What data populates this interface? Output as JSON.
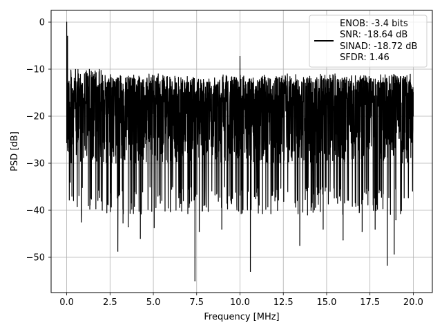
{
  "chart_data": {
    "type": "line",
    "title": "",
    "xlabel": "Frequency [MHz]",
    "ylabel": "PSD [dB]",
    "xlim": [
      -0.9,
      21.1
    ],
    "ylim": [
      -57.5,
      2.5
    ],
    "x_ticks": [
      0.0,
      2.5,
      5.0,
      7.5,
      10.0,
      12.5,
      15.0,
      17.5,
      20.0
    ],
    "x_tick_labels": [
      "0.0",
      "2.5",
      "5.0",
      "7.5",
      "10.0",
      "12.5",
      "15.0",
      "17.5",
      "20.0"
    ],
    "y_ticks": [
      0,
      -10,
      -20,
      -30,
      -40,
      -50
    ],
    "y_tick_labels": [
      "0",
      "−10",
      "−20",
      "−30",
      "−40",
      "−50"
    ],
    "grid": true,
    "legend_position": "top-right",
    "legend_lines": [
      "ENOB: -3.4 bits",
      "SNR: -18.64 dB",
      "SINAD: -18.72 dB",
      "SFDR: 1.46"
    ],
    "series": [
      {
        "color": "#000000",
        "noise_floor_db": [
          -35,
          -10
        ],
        "x_range": [
          0.0,
          20.0
        ],
        "notable_points": [
          {
            "x": 0.0,
            "y": 0.0
          },
          {
            "x": 0.05,
            "y": -3
          },
          {
            "x": 0.1,
            "y": -17
          },
          {
            "x": 0.2,
            "y": -34
          },
          {
            "x": 0.3,
            "y": -37
          },
          {
            "x": 0.85,
            "y": -42.5
          },
          {
            "x": 2.05,
            "y": -40
          },
          {
            "x": 2.95,
            "y": -48.7
          },
          {
            "x": 3.25,
            "y": -42.7
          },
          {
            "x": 3.55,
            "y": -43.5
          },
          {
            "x": 4.25,
            "y": -46
          },
          {
            "x": 5.05,
            "y": -43.7
          },
          {
            "x": 5.4,
            "y": -38.5
          },
          {
            "x": 7.4,
            "y": -55
          },
          {
            "x": 7.65,
            "y": -44.5
          },
          {
            "x": 8.95,
            "y": -44
          },
          {
            "x": 10.0,
            "y": -7.3
          },
          {
            "x": 10.6,
            "y": -53
          },
          {
            "x": 11.3,
            "y": -40.7
          },
          {
            "x": 13.45,
            "y": -47.5
          },
          {
            "x": 13.9,
            "y": -41
          },
          {
            "x": 14.8,
            "y": -44
          },
          {
            "x": 15.95,
            "y": -46.3
          },
          {
            "x": 17.05,
            "y": -44.5
          },
          {
            "x": 17.8,
            "y": -44
          },
          {
            "x": 18.5,
            "y": -51.7
          },
          {
            "x": 18.9,
            "y": -49.3
          },
          {
            "x": 19.0,
            "y": -42
          },
          {
            "x": 20.0,
            "y": -20
          }
        ]
      }
    ]
  }
}
